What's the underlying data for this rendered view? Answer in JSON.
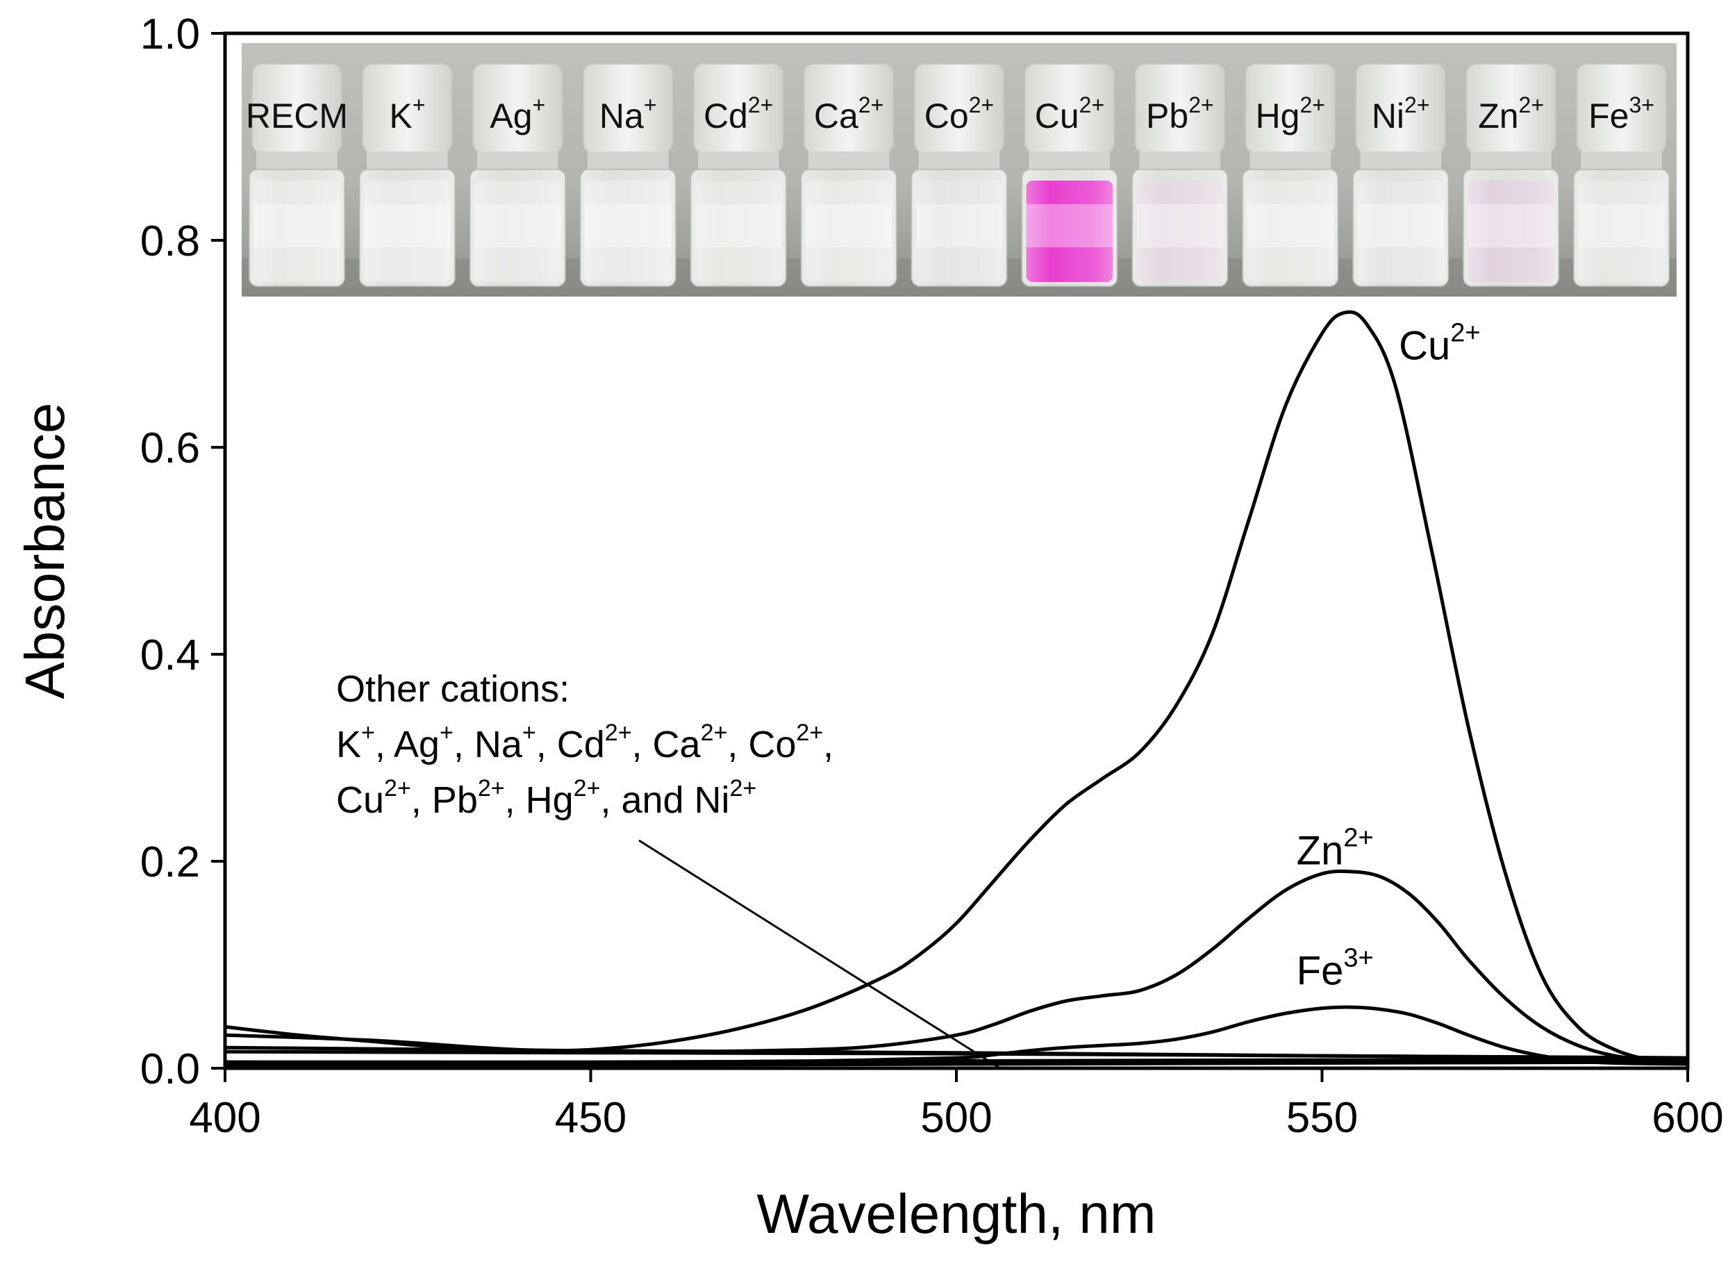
{
  "chart_data": {
    "type": "line",
    "xlabel": "Wavelength, nm",
    "ylabel": "Absorbance",
    "xlim": [
      400,
      600
    ],
    "ylim": [
      0.0,
      1.0
    ],
    "xticks": [
      "400",
      "450",
      "500",
      "550",
      "600"
    ],
    "yticks": [
      "0.0",
      "0.2",
      "0.4",
      "0.6",
      "0.8",
      "1.0"
    ],
    "grid": false,
    "series": [
      {
        "name": "Cu2+",
        "label_parts": [
          {
            "text": "Cu",
            "sup": "2+"
          }
        ],
        "x": [
          400,
          410,
          420,
          430,
          440,
          450,
          460,
          470,
          480,
          490,
          495,
          500,
          505,
          510,
          515,
          520,
          525,
          530,
          535,
          540,
          545,
          550,
          553,
          556,
          560,
          565,
          570,
          575,
          580,
          585,
          590,
          595,
          600
        ],
        "y": [
          0.04,
          0.032,
          0.026,
          0.02,
          0.017,
          0.018,
          0.025,
          0.038,
          0.058,
          0.088,
          0.11,
          0.14,
          0.18,
          0.22,
          0.255,
          0.28,
          0.305,
          0.35,
          0.42,
          0.53,
          0.64,
          0.71,
          0.73,
          0.72,
          0.66,
          0.5,
          0.33,
          0.19,
          0.09,
          0.04,
          0.018,
          0.008,
          0.005
        ]
      },
      {
        "name": "Zn2+",
        "label_parts": [
          {
            "text": "Zn",
            "sup": "2+"
          }
        ],
        "x": [
          400,
          420,
          440,
          460,
          480,
          490,
          500,
          505,
          510,
          515,
          520,
          525,
          530,
          535,
          540,
          545,
          550,
          554,
          558,
          562,
          566,
          570,
          575,
          580,
          585,
          590,
          595,
          600
        ],
        "y": [
          0.032,
          0.027,
          0.018,
          0.016,
          0.018,
          0.022,
          0.032,
          0.042,
          0.055,
          0.065,
          0.07,
          0.075,
          0.09,
          0.115,
          0.145,
          0.172,
          0.188,
          0.19,
          0.185,
          0.168,
          0.14,
          0.105,
          0.068,
          0.04,
          0.022,
          0.012,
          0.008,
          0.006
        ]
      },
      {
        "name": "Fe3+",
        "label_parts": [
          {
            "text": "Fe",
            "sup": "3+"
          }
        ],
        "x": [
          400,
          420,
          440,
          460,
          480,
          500,
          505,
          510,
          515,
          520,
          525,
          530,
          535,
          540,
          545,
          550,
          554,
          558,
          562,
          566,
          570,
          575,
          580,
          585,
          590,
          600
        ],
        "y": [
          0.006,
          0.005,
          0.005,
          0.006,
          0.007,
          0.01,
          0.013,
          0.017,
          0.02,
          0.022,
          0.024,
          0.028,
          0.035,
          0.045,
          0.053,
          0.058,
          0.059,
          0.057,
          0.052,
          0.043,
          0.032,
          0.02,
          0.012,
          0.007,
          0.005,
          0.004
        ]
      },
      {
        "name": "Other cations",
        "x": [
          400,
          450,
          500,
          550,
          600
        ],
        "y": [
          0.02,
          0.017,
          0.015,
          0.012,
          0.01
        ]
      },
      {
        "name": "Other cations",
        "x": [
          400,
          450,
          500,
          550,
          600
        ],
        "y": [
          0.016,
          0.015,
          0.014,
          0.012,
          0.01
        ]
      },
      {
        "name": "Other cations",
        "x": [
          400,
          450,
          500,
          550,
          600
        ],
        "y": [
          0.006,
          0.006,
          0.007,
          0.008,
          0.008
        ]
      },
      {
        "name": "Other cations",
        "x": [
          400,
          450,
          500,
          550,
          600
        ],
        "y": [
          0.003,
          0.003,
          0.004,
          0.005,
          0.006
        ]
      }
    ],
    "annotation": {
      "lines": [
        [
          {
            "text": "Other cations:"
          }
        ],
        [
          {
            "text": "K",
            "sup": "+"
          },
          {
            "text": ", Ag"
          },
          {
            "sup": "+"
          },
          {
            "text": ", Na"
          },
          {
            "sup": "+"
          },
          {
            "text": ", Cd"
          },
          {
            "sup": "2+"
          },
          {
            "text": ", Ca"
          },
          {
            "sup": "2+"
          },
          {
            "text": ", Co"
          },
          {
            "sup": "2+"
          },
          {
            "text": ","
          }
        ],
        [
          {
            "text": "Cu",
            "sup": "2+"
          },
          {
            "text": ", Pb"
          },
          {
            "sup": "2+"
          },
          {
            "text": ", Hg"
          },
          {
            "sup": "2+"
          },
          {
            "text": ", and Ni"
          },
          {
            "sup": "2+"
          }
        ]
      ],
      "pointer_to": {
        "x": 506,
        "y": 0.0
      }
    }
  },
  "inset_photo": {
    "vials": [
      {
        "label": "RECM",
        "sup": "",
        "liquid": "#e8eae6"
      },
      {
        "label": "K",
        "sup": "+",
        "liquid": "#e9ebe8"
      },
      {
        "label": "Ag",
        "sup": "+",
        "liquid": "#e7e9e5"
      },
      {
        "label": "Na",
        "sup": "+",
        "liquid": "#eaebe8"
      },
      {
        "label": "Cd",
        "sup": "2+",
        "liquid": "#e6e8e4"
      },
      {
        "label": "Ca",
        "sup": "2+",
        "liquid": "#e8eae6"
      },
      {
        "label": "Co",
        "sup": "2+",
        "liquid": "#e5e6e3"
      },
      {
        "label": "Cu",
        "sup": "2+",
        "liquid": "#e83fcf"
      },
      {
        "label": "Pb",
        "sup": "2+",
        "liquid": "#e4d9e2"
      },
      {
        "label": "Hg",
        "sup": "2+",
        "liquid": "#e7e9e5"
      },
      {
        "label": "Ni",
        "sup": "2+",
        "liquid": "#e6e7e4"
      },
      {
        "label": "Zn",
        "sup": "2+",
        "liquid": "#e2d3df"
      },
      {
        "label": "Fe",
        "sup": "3+",
        "liquid": "#e6e8e4"
      }
    ]
  }
}
